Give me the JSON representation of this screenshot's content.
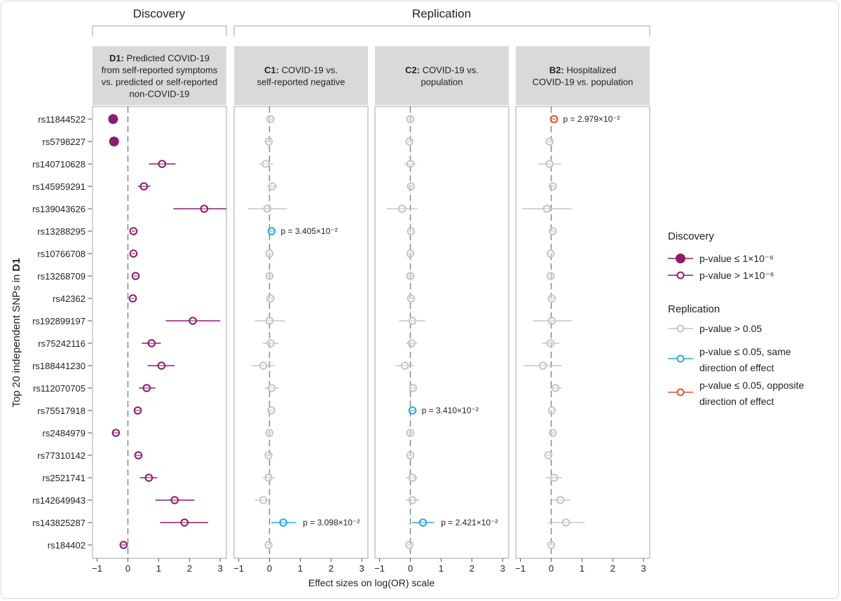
{
  "chart_data": {
    "type": "forest",
    "group_labels": {
      "discovery": "Discovery",
      "replication": "Replication"
    },
    "ylabel": {
      "text": "Top 20 independent SNPs in ",
      "bold": "D1"
    },
    "xlabel": "Effect sizes on log(OR) scale",
    "xlim": [
      -1.15,
      3.2
    ],
    "xticks": [
      "-1",
      "0",
      "1",
      "2",
      "3"
    ],
    "reference_line": 0,
    "categories": [
      "rs11844522",
      "rs5798227",
      "rs140710628",
      "rs145959291",
      "rs139043626",
      "rs13288295",
      "rs10766708",
      "rs13268709",
      "rs42362",
      "rs192899197",
      "rs75242116",
      "rs188441230",
      "rs112070705",
      "rs75517918",
      "rs2484979",
      "rs77310142",
      "rs2521741",
      "rs142649943",
      "rs143825287",
      "rs184402"
    ],
    "colors": {
      "discovery": "#8e1b6c",
      "ns": "#c6c6c6",
      "same": "#29a8df",
      "opp": "#e2542c",
      "refline": "#888888",
      "header_bg": "#d9d9d9"
    },
    "panels": [
      {
        "id": "D1",
        "group": "discovery",
        "bold": "D1:",
        "lines": [
          "Predicted COVID-19",
          "from self-reported symptoms",
          "vs. predicted or self-reported",
          "non-COVID-19"
        ],
        "points": [
          [
            -0.48,
            -0.58,
            -0.38,
            "sig"
          ],
          [
            -0.45,
            -0.55,
            -0.35,
            "sig"
          ],
          [
            1.11,
            0.68,
            1.55,
            "ns"
          ],
          [
            0.52,
            0.32,
            0.73,
            "ns"
          ],
          [
            2.48,
            1.48,
            3.5,
            "ns"
          ],
          [
            0.18,
            0.12,
            0.24,
            "ns"
          ],
          [
            0.18,
            0.12,
            0.24,
            "ns"
          ],
          [
            0.25,
            0.19,
            0.31,
            "ns"
          ],
          [
            0.16,
            0.1,
            0.22,
            "ns"
          ],
          [
            2.11,
            1.23,
            3.0,
            "ns"
          ],
          [
            0.77,
            0.45,
            1.07,
            "ns"
          ],
          [
            1.09,
            0.64,
            1.52,
            "ns"
          ],
          [
            0.61,
            0.36,
            0.89,
            "ns"
          ],
          [
            0.32,
            0.24,
            0.4,
            "ns"
          ],
          [
            -0.39,
            -0.5,
            -0.28,
            "ns"
          ],
          [
            0.34,
            0.26,
            0.42,
            "ns"
          ],
          [
            0.68,
            0.39,
            0.95,
            "ns"
          ],
          [
            1.52,
            0.89,
            2.16,
            "ns"
          ],
          [
            1.84,
            1.05,
            2.61,
            "ns"
          ],
          [
            -0.14,
            -0.22,
            -0.06,
            "ns"
          ]
        ],
        "annotations": []
      },
      {
        "id": "C1",
        "group": "replication",
        "bold": "C1:",
        "lines": [
          "COVID-19 vs.",
          "self-reported negative"
        ],
        "points": [
          [
            0.03,
            -0.05,
            0.1,
            "ns"
          ],
          [
            -0.02,
            -0.1,
            0.06,
            "ns"
          ],
          [
            -0.12,
            -0.35,
            0.12,
            "ns"
          ],
          [
            0.09,
            -0.08,
            0.25,
            "ns"
          ],
          [
            -0.07,
            -0.7,
            0.57,
            "ns"
          ],
          [
            0.07,
            0.0,
            0.14,
            "same"
          ],
          [
            0.0,
            -0.07,
            0.07,
            "ns"
          ],
          [
            0.0,
            -0.07,
            0.07,
            "ns"
          ],
          [
            0.03,
            -0.05,
            0.1,
            "ns"
          ],
          [
            0.0,
            -0.48,
            0.5,
            "ns"
          ],
          [
            0.04,
            -0.22,
            0.3,
            "ns"
          ],
          [
            -0.2,
            -0.58,
            0.18,
            "ns"
          ],
          [
            0.07,
            -0.15,
            0.3,
            "ns"
          ],
          [
            0.06,
            -0.02,
            0.14,
            "ns"
          ],
          [
            0.0,
            -0.07,
            0.07,
            "ns"
          ],
          [
            -0.03,
            -0.1,
            0.04,
            "ns"
          ],
          [
            -0.03,
            -0.22,
            0.18,
            "ns"
          ],
          [
            -0.2,
            -0.48,
            0.03,
            "ns"
          ],
          [
            0.45,
            0.06,
            0.86,
            "same"
          ],
          [
            -0.03,
            -0.1,
            0.04,
            "ns"
          ]
        ],
        "annotations": [
          {
            "row": 5,
            "text": "p = 3.405×10⁻²"
          },
          {
            "row": 18,
            "text": "p = 3.098×10⁻²"
          }
        ]
      },
      {
        "id": "C2",
        "group": "replication",
        "bold": "C2:",
        "lines": [
          "COVID-19 vs.",
          "population"
        ],
        "points": [
          [
            0.0,
            -0.07,
            0.07,
            "ns"
          ],
          [
            -0.03,
            -0.1,
            0.04,
            "ns"
          ],
          [
            0.0,
            -0.2,
            0.2,
            "ns"
          ],
          [
            0.02,
            -0.06,
            0.1,
            "ns"
          ],
          [
            -0.27,
            -0.77,
            0.23,
            "ns"
          ],
          [
            0.02,
            -0.05,
            0.09,
            "ns"
          ],
          [
            0.0,
            -0.07,
            0.07,
            "ns"
          ],
          [
            0.0,
            -0.07,
            0.07,
            "ns"
          ],
          [
            0.02,
            -0.05,
            0.09,
            "ns"
          ],
          [
            0.07,
            -0.36,
            0.48,
            "ns"
          ],
          [
            0.04,
            -0.14,
            0.23,
            "ns"
          ],
          [
            -0.18,
            -0.48,
            0.14,
            "ns"
          ],
          [
            0.09,
            0.0,
            0.17,
            "ns"
          ],
          [
            0.07,
            0.0,
            0.14,
            "same"
          ],
          [
            0.0,
            -0.07,
            0.07,
            "ns"
          ],
          [
            0.0,
            -0.07,
            0.07,
            "ns"
          ],
          [
            0.07,
            -0.14,
            0.23,
            "ns"
          ],
          [
            0.07,
            -0.16,
            0.3,
            "ns"
          ],
          [
            0.41,
            0.05,
            0.77,
            "same"
          ],
          [
            -0.03,
            -0.1,
            0.04,
            "ns"
          ]
        ],
        "annotations": [
          {
            "row": 13,
            "text": "p = 3.410×10⁻²"
          },
          {
            "row": 18,
            "text": "p = 2.421×10⁻²"
          }
        ]
      },
      {
        "id": "B2",
        "group": "replication",
        "bold": "B2:",
        "lines": [
          "Hospitalized",
          "COVID-19 vs. population"
        ],
        "points": [
          [
            0.09,
            0.02,
            0.16,
            "opp"
          ],
          [
            -0.05,
            -0.12,
            0.02,
            "ns"
          ],
          [
            -0.05,
            -0.43,
            0.32,
            "ns"
          ],
          [
            0.05,
            -0.07,
            0.18,
            "ns"
          ],
          [
            -0.14,
            -0.95,
            0.66,
            "ns"
          ],
          [
            0.05,
            -0.02,
            0.12,
            "ns"
          ],
          [
            -0.02,
            -0.09,
            0.05,
            "ns"
          ],
          [
            -0.02,
            -0.09,
            0.05,
            "ns"
          ],
          [
            0.02,
            -0.05,
            0.09,
            "ns"
          ],
          [
            0.02,
            -0.6,
            0.68,
            "ns"
          ],
          [
            -0.02,
            -0.3,
            0.27,
            "ns"
          ],
          [
            -0.27,
            -0.9,
            0.34,
            "ns"
          ],
          [
            0.14,
            -0.05,
            0.34,
            "ns"
          ],
          [
            0.02,
            -0.05,
            0.09,
            "ns"
          ],
          [
            0.05,
            -0.02,
            0.12,
            "ns"
          ],
          [
            -0.09,
            -0.16,
            -0.02,
            "ns"
          ],
          [
            0.09,
            -0.16,
            0.34,
            "ns"
          ],
          [
            0.3,
            0.02,
            0.61,
            "ns"
          ],
          [
            0.48,
            -0.1,
            1.09,
            "ns"
          ],
          [
            0.0,
            -0.07,
            0.07,
            "ns"
          ]
        ],
        "annotations": [
          {
            "row": 0,
            "text": "p = 2.979×10⁻²"
          }
        ]
      }
    ],
    "legend": {
      "placement": "right",
      "discovery_title": "Discovery",
      "discovery_items": [
        {
          "style": "sig",
          "label": [
            "p-value ≤ 1×10⁻⁶"
          ]
        },
        {
          "style": "ns",
          "label": [
            "p-value > 1×10⁻⁶"
          ]
        }
      ],
      "replication_title": "Replication",
      "replication_items": [
        {
          "style": "ns",
          "label": [
            "p-value > 0.05"
          ]
        },
        {
          "style": "same",
          "label": [
            "p-value ≤ 0.05, same",
            "direction of effect"
          ]
        },
        {
          "style": "opp",
          "label": [
            "p-value ≤ 0.05, opposite",
            "direction of effect"
          ]
        }
      ]
    }
  }
}
